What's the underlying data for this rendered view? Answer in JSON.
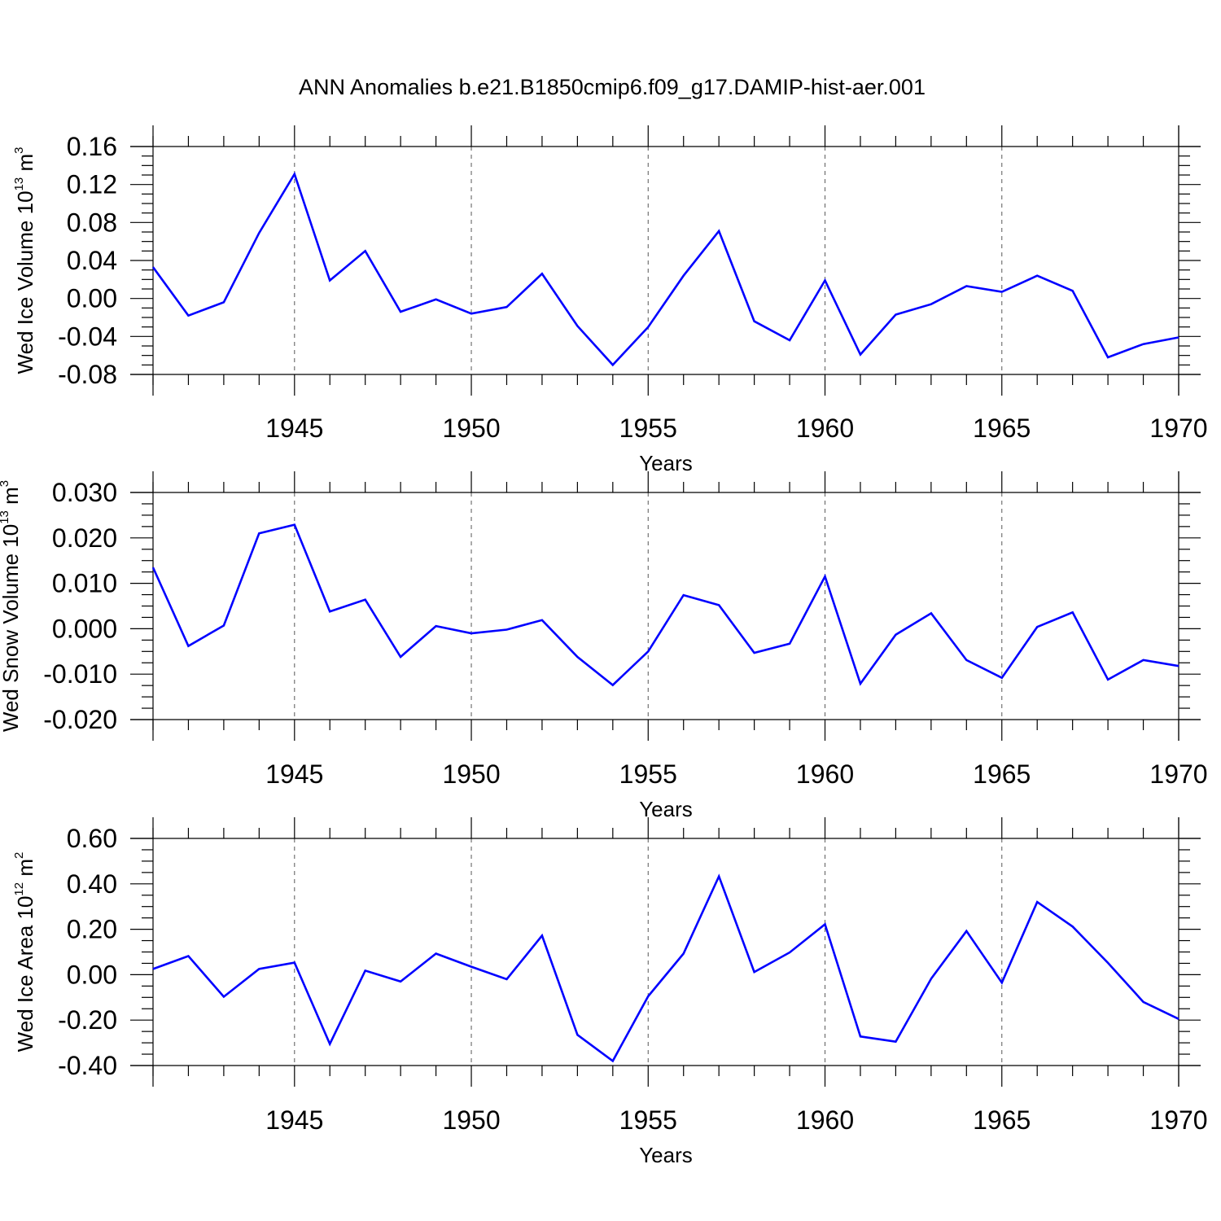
{
  "title": "ANN Anomalies b.e21.B1850cmip6.f09_g17.DAMIP-hist-aer.001",
  "chart_data": [
    {
      "type": "line",
      "title": "ANN Anomalies b.e21.B1850cmip6.f09_g17.DAMIP-hist-aer.001",
      "xlabel": "Years",
      "ylabel": {
        "main": "Wed Ice Volume 10",
        "exp": "13",
        "unit": " m",
        "unit_exp": "3"
      },
      "xlim": [
        1941,
        1970
      ],
      "ylim": [
        -0.08,
        0.16
      ],
      "x_ticks": [
        1945,
        1950,
        1955,
        1960,
        1965,
        1970
      ],
      "y_ticks": [
        "-0.08",
        "-0.04",
        "0.00",
        "0.04",
        "0.08",
        "0.12",
        "0.16"
      ],
      "y_tick_values": [
        -0.08,
        -0.04,
        0.0,
        0.04,
        0.08,
        0.12,
        0.16
      ],
      "grid": "vertical dashed at major x ticks",
      "color": "#0000ff",
      "x": [
        1941,
        1942,
        1943,
        1944,
        1945,
        1946,
        1947,
        1948,
        1949,
        1950,
        1951,
        1952,
        1953,
        1954,
        1955,
        1956,
        1957,
        1958,
        1959,
        1960,
        1961,
        1962,
        1963,
        1964,
        1965,
        1966,
        1967,
        1968,
        1969,
        1970
      ],
      "values": [
        0.033,
        -0.018,
        -0.004,
        0.069,
        0.131,
        0.019,
        0.05,
        -0.014,
        -0.001,
        -0.016,
        -0.009,
        0.026,
        -0.029,
        -0.07,
        -0.03,
        0.024,
        0.071,
        -0.024,
        -0.044,
        0.019,
        -0.059,
        -0.017,
        -0.006,
        0.013,
        0.007,
        0.024,
        0.008,
        -0.062,
        -0.048,
        -0.041
      ]
    },
    {
      "type": "line",
      "xlabel": "Years",
      "ylabel": {
        "main": "Wed Snow Volume 10",
        "exp": "13",
        "unit": " m",
        "unit_exp": "3"
      },
      "xlim": [
        1941,
        1970
      ],
      "ylim": [
        -0.02,
        0.03
      ],
      "x_ticks": [
        1945,
        1950,
        1955,
        1960,
        1965,
        1970
      ],
      "y_ticks": [
        "-0.020",
        "-0.010",
        "0.000",
        "0.010",
        "0.020",
        "0.030"
      ],
      "y_tick_values": [
        -0.02,
        -0.01,
        0.0,
        0.01,
        0.02,
        0.03
      ],
      "grid": "vertical dashed at major x ticks",
      "color": "#0000ff",
      "x": [
        1941,
        1942,
        1943,
        1944,
        1945,
        1946,
        1947,
        1948,
        1949,
        1950,
        1951,
        1952,
        1953,
        1954,
        1955,
        1956,
        1957,
        1958,
        1959,
        1960,
        1961,
        1962,
        1963,
        1964,
        1965,
        1966,
        1967,
        1968,
        1969,
        1970
      ],
      "values": [
        0.0135,
        -0.0038,
        0.0007,
        0.021,
        0.0229,
        0.0038,
        0.0064,
        -0.0062,
        0.0006,
        -0.001,
        -0.0002,
        0.0019,
        -0.0062,
        -0.0124,
        -0.005,
        0.0074,
        0.0052,
        -0.0053,
        -0.0033,
        0.0115,
        -0.0121,
        -0.0013,
        0.0034,
        -0.0069,
        -0.0108,
        0.0004,
        0.0036,
        -0.0112,
        -0.0069,
        -0.0082
      ]
    },
    {
      "type": "line",
      "xlabel": "Years",
      "ylabel": {
        "main": "Wed Ice Area 10",
        "exp": "12",
        "unit": " m",
        "unit_exp": "2"
      },
      "xlim": [
        1941,
        1970
      ],
      "ylim": [
        -0.4,
        0.6
      ],
      "x_ticks": [
        1945,
        1950,
        1955,
        1960,
        1965,
        1970
      ],
      "y_ticks": [
        "-0.40",
        "-0.20",
        "0.00",
        "0.20",
        "0.40",
        "0.60"
      ],
      "y_tick_values": [
        -0.4,
        -0.2,
        0.0,
        0.2,
        0.4,
        0.6
      ],
      "grid": "vertical dashed at major x ticks",
      "color": "#0000ff",
      "x": [
        1941,
        1942,
        1943,
        1944,
        1945,
        1946,
        1947,
        1948,
        1949,
        1950,
        1951,
        1952,
        1953,
        1954,
        1955,
        1956,
        1957,
        1958,
        1959,
        1960,
        1961,
        1962,
        1963,
        1964,
        1965,
        1966,
        1967,
        1968,
        1969,
        1970
      ],
      "values": [
        0.025,
        0.082,
        -0.097,
        0.025,
        0.053,
        -0.305,
        0.018,
        -0.03,
        0.093,
        0.035,
        -0.02,
        0.172,
        -0.265,
        -0.38,
        -0.095,
        0.093,
        0.433,
        0.012,
        0.098,
        0.222,
        -0.272,
        -0.295,
        -0.018,
        0.192,
        -0.035,
        0.32,
        0.212,
        0.052,
        -0.12,
        -0.195
      ]
    }
  ]
}
